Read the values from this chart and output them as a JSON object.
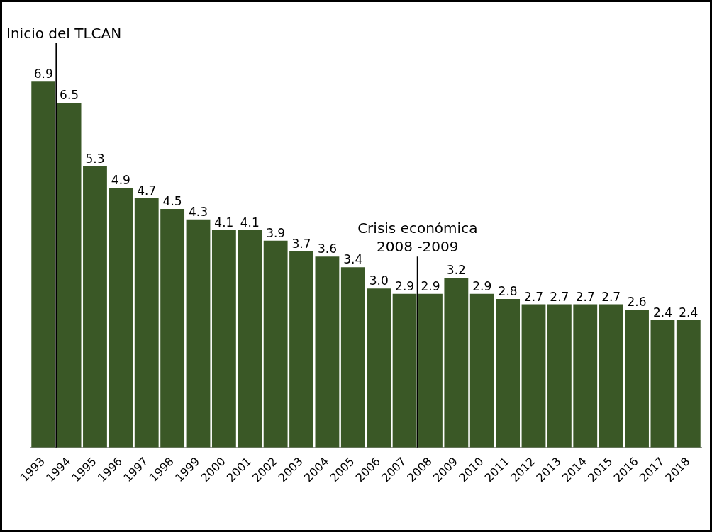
{
  "chart_data": {
    "type": "bar",
    "categories": [
      "1993",
      "1994",
      "1995",
      "1996",
      "1997",
      "1998",
      "1999",
      "2000",
      "2001",
      "2002",
      "2003",
      "2004",
      "2005",
      "2006",
      "2007",
      "2008",
      "2009",
      "2010",
      "2011",
      "2012",
      "2013",
      "2014",
      "2015",
      "2016",
      "2017",
      "2018"
    ],
    "values": [
      6.9,
      6.5,
      5.3,
      4.9,
      4.7,
      4.5,
      4.3,
      4.1,
      4.1,
      3.9,
      3.7,
      3.6,
      3.4,
      3.0,
      2.9,
      2.9,
      3.2,
      2.9,
      2.8,
      2.7,
      2.7,
      2.7,
      2.7,
      2.6,
      2.4,
      2.4
    ],
    "color": "#3a5826",
    "value_labels": [
      "6.9",
      "6.5",
      "5.3",
      "4.9",
      "4.7",
      "4.5",
      "4.3",
      "4.1",
      "4.1",
      "3.9",
      "3.7",
      "3.6",
      "3.4",
      "3.0",
      "2.9",
      "2.9",
      "3.2",
      "2.9",
      "2.8",
      "2.7",
      "2.7",
      "2.7",
      "2.7",
      "2.6",
      "2.4",
      "2.4"
    ],
    "grid": false,
    "legend": false,
    "ref_lines": [
      {
        "axis": "x",
        "value": "1994",
        "label": "Inicio del TLCAN",
        "color": "#000000"
      },
      {
        "axis": "x",
        "value": "2008",
        "label": "Crisis económica\n2008 -2009",
        "color": "#000000"
      }
    ]
  }
}
